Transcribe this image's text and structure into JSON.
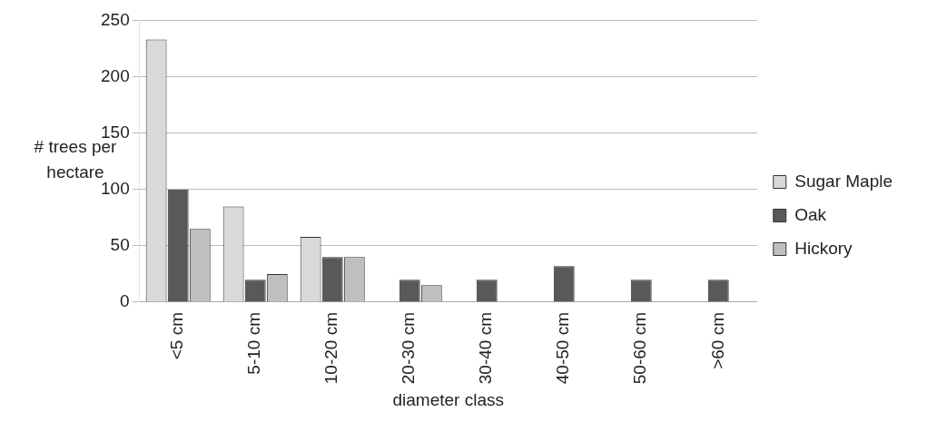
{
  "chart_data": {
    "type": "bar",
    "xlabel": "diameter class",
    "ylabel": "# trees per hectare",
    "categories": [
      "<5 cm",
      "5-10 cm",
      "10-20 cm",
      "20-30 cm",
      "30-40 cm",
      "40-50 cm",
      "50-60 cm",
      ">60 cm"
    ],
    "series": [
      {
        "name": "Sugar Maple",
        "color": "#d9d9d9",
        "values": [
          233,
          85,
          58,
          0,
          0,
          0,
          0,
          0
        ]
      },
      {
        "name": "Oak",
        "color": "#595959",
        "values": [
          100,
          20,
          40,
          20,
          20,
          32,
          20,
          20
        ]
      },
      {
        "name": "Hickory",
        "color": "#bfbfbf",
        "values": [
          65,
          25,
          40,
          15,
          0,
          0,
          0,
          0
        ]
      }
    ],
    "ylim": [
      0,
      250
    ],
    "yticks": [
      0,
      50,
      100,
      150,
      200,
      250
    ],
    "grid": "y",
    "legend": "right"
  }
}
